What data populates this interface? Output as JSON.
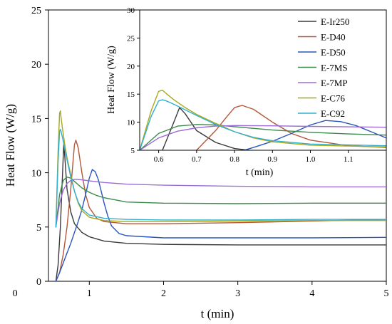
{
  "chart_data": [
    {
      "type": "line",
      "xlabel": "t (min)",
      "ylabel": "Heat Flow (W/g)",
      "xlim": [
        0.45,
        5
      ],
      "ylim": [
        0,
        25
      ],
      "xticks": [
        0,
        1,
        2,
        3,
        4,
        5
      ],
      "yticks": [
        0,
        5,
        10,
        15,
        20,
        25
      ],
      "grid": false,
      "series": [
        {
          "name": "E-Ir250",
          "color": "#3a3a3a",
          "x": [
            0.55,
            0.58,
            0.61,
            0.64,
            0.655,
            0.67,
            0.7,
            0.75,
            0.8,
            0.9,
            1.0,
            1.2,
            1.5,
            2,
            3,
            4,
            5
          ],
          "y": [
            0,
            1.5,
            5,
            10,
            12.6,
            11.5,
            8.5,
            6.4,
            5.3,
            4.5,
            4.1,
            3.7,
            3.5,
            3.4,
            3.35,
            3.35,
            3.35
          ]
        },
        {
          "name": "E-D40",
          "color": "#b5563a",
          "x": [
            0.55,
            0.6,
            0.65,
            0.7,
            0.75,
            0.78,
            0.8,
            0.82,
            0.85,
            0.9,
            0.95,
            1.0,
            1.1,
            1.2,
            1.5,
            2,
            3,
            4,
            5
          ],
          "y": [
            0,
            0.8,
            2.5,
            5,
            8.5,
            11,
            12.6,
            13,
            12.3,
            10,
            8,
            6.8,
            5.8,
            5.5,
            5.3,
            5.3,
            5.4,
            5.55,
            5.7
          ]
        },
        {
          "name": "E-D50",
          "color": "#2a55c0",
          "x": [
            0.55,
            0.6,
            0.65,
            0.7,
            0.75,
            0.8,
            0.85,
            0.9,
            0.95,
            1.0,
            1.04,
            1.08,
            1.12,
            1.16,
            1.2,
            1.25,
            1.3,
            1.4,
            1.5,
            2,
            3,
            4,
            5
          ],
          "y": [
            0,
            0.8,
            1.7,
            2.6,
            3.5,
            4.5,
            5.5,
            6.6,
            8,
            9.5,
            10.3,
            10.1,
            9.4,
            8.3,
            7.2,
            6,
            5.1,
            4.4,
            4.2,
            4.0,
            4.0,
            4.0,
            4.05
          ]
        },
        {
          "name": "E-7MS",
          "color": "#3a8a4a",
          "x": [
            0.55,
            0.6,
            0.65,
            0.7,
            0.75,
            0.8,
            0.9,
            1.0,
            1.1,
            1.2,
            1.5,
            2,
            3,
            4,
            5
          ],
          "y": [
            5,
            8,
            9.3,
            9.6,
            9.5,
            9.2,
            8.6,
            8.2,
            7.9,
            7.7,
            7.3,
            7.2,
            7.15,
            7.2,
            7.2
          ]
        },
        {
          "name": "E-7MP",
          "color": "#9b6dd8",
          "x": [
            0.55,
            0.6,
            0.65,
            0.7,
            0.75,
            0.8,
            0.9,
            1.0,
            1.2,
            1.5,
            2,
            3,
            4,
            5
          ],
          "y": [
            5,
            7.2,
            8.4,
            9,
            9.3,
            9.4,
            9.35,
            9.25,
            9.1,
            8.95,
            8.85,
            8.75,
            8.7,
            8.7
          ]
        },
        {
          "name": "E-C76",
          "color": "#a8a81e",
          "x": [
            0.55,
            0.58,
            0.6,
            0.61,
            0.62,
            0.64,
            0.67,
            0.7,
            0.75,
            0.8,
            0.85,
            0.9,
            1.0,
            1.2,
            1.5,
            2,
            3,
            4,
            5
          ],
          "y": [
            5,
            12,
            15.5,
            15.7,
            15.1,
            14,
            12.6,
            11.4,
            9.8,
            8.3,
            7.2,
            6.5,
            5.9,
            5.6,
            5.5,
            5.5,
            5.55,
            5.6,
            5.6
          ]
        },
        {
          "name": "E-C92",
          "color": "#2fb0cf",
          "x": [
            0.55,
            0.58,
            0.6,
            0.61,
            0.62,
            0.64,
            0.67,
            0.7,
            0.75,
            0.8,
            0.85,
            0.9,
            1.0,
            1.2,
            1.5,
            2,
            3,
            4,
            5
          ],
          "y": [
            5,
            11,
            13.8,
            14,
            13.8,
            13.2,
            12.2,
            11.2,
            9.6,
            8.3,
            7.3,
            6.7,
            6.1,
            5.8,
            5.7,
            5.65,
            5.65,
            5.7,
            5.7
          ]
        }
      ]
    },
    {
      "type": "line",
      "xlabel": "t (min)",
      "ylabel": "Heat Flow (W/g)",
      "xlim": [
        0.55,
        1.2
      ],
      "ylim": [
        5,
        30
      ],
      "xticks": [
        0.6,
        0.7,
        0.8,
        0.9,
        1.0,
        1.1
      ],
      "xtick_labels": [
        "0.6",
        "0.7",
        "0.8",
        "0.9",
        "1.0",
        "1.1"
      ],
      "yticks": [
        5,
        10,
        15,
        20,
        25,
        30
      ],
      "grid": false,
      "legend": [
        "E-Ir250",
        "E-D40",
        "E-D50",
        "E-7MS",
        "E-7MP",
        "E-C76",
        "E-C92"
      ],
      "legend_position": "top-right"
    }
  ]
}
